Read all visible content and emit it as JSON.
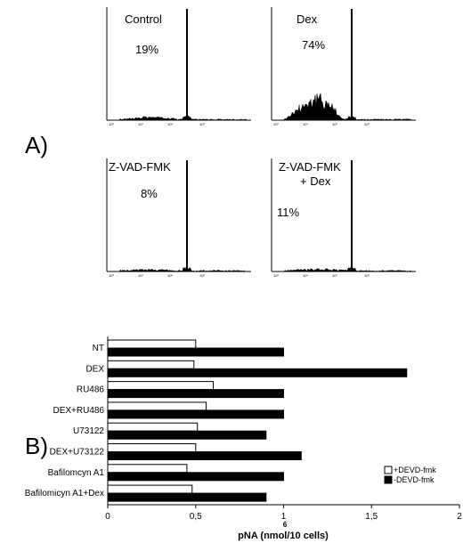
{
  "panel_a": {
    "label": "A)",
    "histograms": [
      {
        "title": "Control",
        "percent": "19%",
        "hypodiploid_level": 0.06,
        "ticks": [
          "10⁰",
          "10¹",
          "10²",
          "10³"
        ]
      },
      {
        "title": "Dex",
        "percent": "74%",
        "hypodiploid_level": 0.62,
        "ticks": [
          "10⁰",
          "10¹",
          "10²",
          "10³"
        ]
      },
      {
        "title": "Z-VAD-FMK",
        "percent": "8%",
        "hypodiploid_level": 0.03,
        "ticks": [
          "10⁰",
          "10¹",
          "10²",
          "10³"
        ]
      },
      {
        "title": "Z-VAD-FMK",
        "title2": "+ Dex",
        "percent": "11%",
        "hypodiploid_level": 0.04,
        "ticks": [
          "10⁰",
          "10¹",
          "10²",
          "10³"
        ]
      }
    ]
  },
  "panel_b": {
    "label": "B)",
    "x_label": "pNA (nmol/10 cells)",
    "x_label_exp": "6"
  },
  "chart_data": {
    "type": "bar",
    "orientation": "horizontal",
    "categories": [
      "NT",
      "DEX",
      "RU486",
      "DEX+RU486",
      "U73122",
      "DEX+U73122",
      "Bafilomcyn A1",
      "Bafilomicyn A1+Dex"
    ],
    "series": [
      {
        "name": "+DEVD-fmk",
        "values": [
          0.5,
          0.49,
          0.6,
          0.56,
          0.51,
          0.5,
          0.45,
          0.48
        ],
        "color": "#ffffff"
      },
      {
        "name": "-DEVD-fmk",
        "values": [
          1.0,
          1.7,
          1.0,
          1.0,
          0.9,
          1.1,
          1.0,
          0.9
        ],
        "color": "#000000"
      }
    ],
    "xlim": [
      0,
      2
    ],
    "x_ticks": [
      "0",
      "0,5",
      "1",
      "1,5",
      "2"
    ],
    "xlabel": "pNA (nmol/10 cells)",
    "legend_position": "bottom-right"
  }
}
